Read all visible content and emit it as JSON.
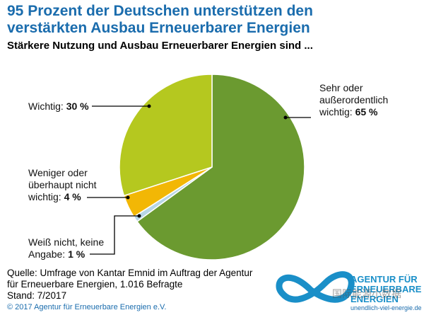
{
  "chart_data": {
    "type": "pie",
    "title": "95 Prozent der Deutschen unterstützen den verstärkten Ausbau Erneuerbarer Energien",
    "subtitle": "Stärkere Nutzung und Ausbau Erneuerbarer Energien sind ...",
    "categories": [
      "Sehr oder außerordentlich wichtig:",
      "Weiß nicht, keine Angabe:",
      "Weniger oder überhaupt nicht wichtig:",
      "Wichtig:"
    ],
    "values": [
      65,
      1,
      4,
      30
    ],
    "value_labels": [
      "65 %",
      "1 %",
      "4 %",
      "30 %"
    ],
    "colors": [
      "#6b9a30",
      "#b7d6e6",
      "#f2b705",
      "#b5c81f"
    ]
  },
  "footer": {
    "source": "Quelle: Umfrage von Kantar Emnid im Auftrag der Agentur für Erneuerbare Energien, 1.016 Befragte",
    "date": "Stand: 7/2017",
    "copyright": "© 2017 Agentur für Erneuerbare Energien e.V."
  },
  "logo": {
    "name": "AGENTUR FÜR ERNEUERBARE ENERGIEN",
    "url": "unendlich-viel-energie.de"
  },
  "watermark": "国际能源小数据"
}
